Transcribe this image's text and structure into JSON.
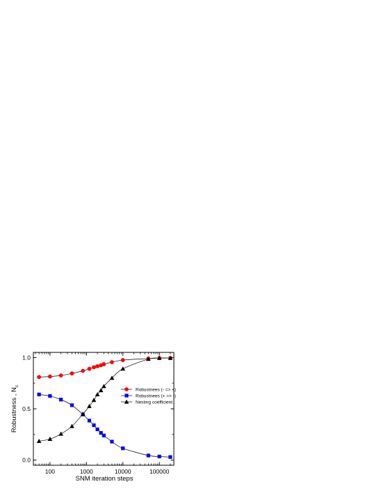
{
  "chart_data": {
    "type": "line",
    "title": "",
    "xlabel": "SNM iteration steps",
    "ylabel": "Robustness , N",
    "ylabel_subscript": "c",
    "xscale": "log",
    "xlim": [
      35,
      250000
    ],
    "ylim": [
      -0.05,
      1.05
    ],
    "xticks": [
      100,
      1000,
      10000,
      100000
    ],
    "xtick_labels": [
      "100",
      "1000",
      "10000",
      "100000"
    ],
    "yticks": [
      0.0,
      0.5,
      1.0
    ],
    "ytick_labels": [
      "0.0",
      "0.5",
      "1.0"
    ],
    "grid": false,
    "legend_position": "right",
    "series": [
      {
        "name": "Robustnees (- => +)",
        "color": "#ff0000",
        "marker": "circle",
        "x": [
          50,
          100,
          200,
          400,
          800,
          1200,
          1600,
          2000,
          2500,
          3000,
          5000,
          10000,
          50000,
          100000,
          200000
        ],
        "values": [
          0.81,
          0.815,
          0.825,
          0.845,
          0.87,
          0.89,
          0.905,
          0.915,
          0.925,
          0.935,
          0.955,
          0.975,
          0.99,
          0.995,
          0.995
        ]
      },
      {
        "name": "Robustnees (+ => -)",
        "color": "#0000ff",
        "marker": "square",
        "x": [
          50,
          100,
          200,
          400,
          800,
          1200,
          1600,
          2000,
          2500,
          3000,
          5000,
          10000,
          50000,
          100000,
          200000
        ],
        "values": [
          0.64,
          0.625,
          0.59,
          0.535,
          0.445,
          0.385,
          0.34,
          0.3,
          0.265,
          0.24,
          0.18,
          0.115,
          0.045,
          0.035,
          0.03
        ]
      },
      {
        "name": "Nesting coefficient",
        "color": "#000000",
        "marker": "triangle",
        "x": [
          50,
          100,
          200,
          400,
          800,
          1200,
          1600,
          2000,
          2500,
          3000,
          5000,
          10000,
          50000,
          100000,
          200000
        ],
        "values": [
          0.185,
          0.205,
          0.255,
          0.33,
          0.45,
          0.525,
          0.585,
          0.64,
          0.68,
          0.72,
          0.8,
          0.89,
          0.985,
          0.995,
          0.995
        ]
      }
    ]
  }
}
